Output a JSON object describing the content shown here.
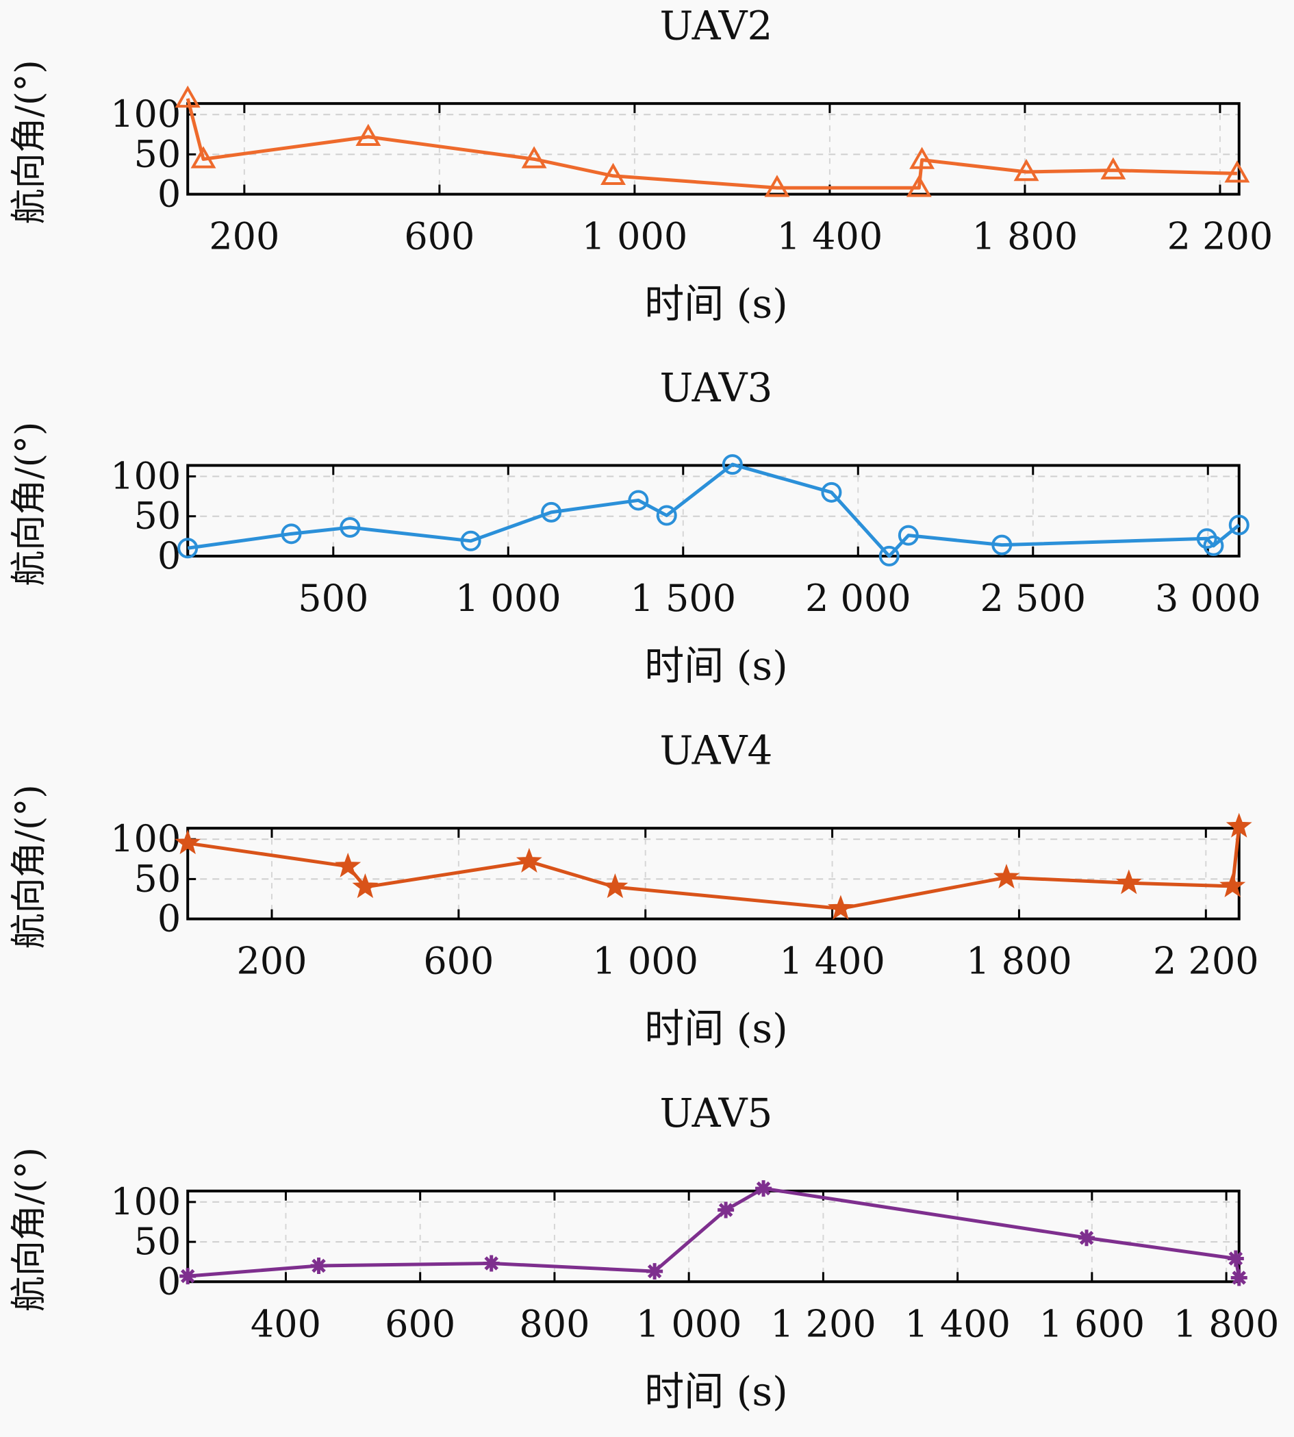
{
  "chart_data": [
    {
      "type": "line",
      "title": "UAV2",
      "xlabel": "时间 (s)",
      "ylabel": "航向角/(°)",
      "xlim": [
        84,
        2239
      ],
      "ylim": [
        0,
        115
      ],
      "xticks": [
        200,
        600,
        1000,
        1400,
        1800,
        2200
      ],
      "xtick_labels": [
        "200",
        "600",
        "1 000",
        "1 400",
        "1 800",
        "2 200"
      ],
      "yticks": [
        0,
        50,
        100
      ],
      "ytick_labels": [
        "0",
        "50",
        "100"
      ],
      "grid": true,
      "color": "#EE6A2C",
      "marker": "triangle",
      "series": [
        {
          "name": "UAV2",
          "x": [
            84,
            116,
            454,
            794,
            956,
            1292,
            1583,
            1589,
            1803,
            1981,
            2235
          ],
          "y": [
            120,
            44,
            72,
            44,
            23,
            8,
            8,
            43,
            28,
            30,
            26
          ]
        }
      ]
    },
    {
      "type": "line",
      "title": "UAV3",
      "xlabel": "时间 (s)",
      "ylabel": "航向角/(°)",
      "xlim": [
        84,
        3089
      ],
      "ylim": [
        0,
        115
      ],
      "xticks": [
        500,
        1000,
        1500,
        2000,
        2500,
        3000
      ],
      "xtick_labels": [
        "500",
        "1 000",
        "1 500",
        "2 000",
        "2 500",
        "3 000"
      ],
      "yticks": [
        0,
        50,
        100
      ],
      "ytick_labels": [
        "0",
        "50",
        "100"
      ],
      "grid": true,
      "color": "#2B90D9",
      "marker": "circle",
      "series": [
        {
          "name": "UAV3",
          "x": [
            84,
            380,
            548,
            893,
            1123,
            1372,
            1453,
            1641,
            1924,
            2089,
            2144,
            2411,
            2997,
            3016,
            3089
          ],
          "y": [
            10,
            28,
            36,
            19,
            55,
            70,
            51,
            115,
            80,
            0,
            26,
            14,
            22,
            13,
            39
          ]
        }
      ]
    },
    {
      "type": "line",
      "title": "UAV4",
      "xlabel": "时间 (s)",
      "ylabel": "航向角/(°)",
      "xlim": [
        20,
        2271
      ],
      "ylim": [
        0,
        115
      ],
      "xticks": [
        200,
        600,
        1000,
        1400,
        1800,
        2200
      ],
      "xtick_labels": [
        "200",
        "600",
        "1 000",
        "1 400",
        "1 800",
        "2 200"
      ],
      "yticks": [
        0,
        50,
        100
      ],
      "ytick_labels": [
        "0",
        "50",
        "100"
      ],
      "grid": true,
      "color": "#D95319",
      "marker": "star",
      "series": [
        {
          "name": "UAV4",
          "x": [
            20,
            363,
            400,
            751,
            935,
            1418,
            1773,
            2035,
            2257,
            2271
          ],
          "y": [
            95,
            66,
            40,
            72,
            40,
            13,
            52,
            45,
            41,
            116
          ]
        }
      ]
    },
    {
      "type": "line",
      "title": "UAV5",
      "xlabel": "时间 (s)",
      "ylabel": "航向角/(°)",
      "xlim": [
        254,
        1819
      ],
      "ylim": [
        0,
        115
      ],
      "xticks": [
        400,
        600,
        800,
        1000,
        1200,
        1400,
        1600,
        1800
      ],
      "xtick_labels": [
        "400",
        "600",
        "800",
        "1 000",
        "1 200",
        "1 400",
        "1 600",
        "1 800"
      ],
      "yticks": [
        0,
        50,
        100
      ],
      "ytick_labels": [
        "0",
        "50",
        "100"
      ],
      "grid": true,
      "color": "#7E2F8E",
      "marker": "asterisk",
      "series": [
        {
          "name": "UAV5",
          "x": [
            254,
            449,
            706,
            949,
            1055,
            1111,
            1592,
            1814,
            1819
          ],
          "y": [
            7,
            20,
            23,
            13,
            90,
            117,
            55,
            29,
            5
          ]
        }
      ]
    }
  ]
}
